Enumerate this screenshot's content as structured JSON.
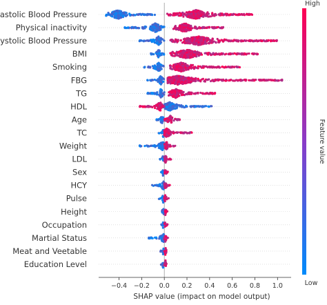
{
  "chart_data": {
    "type": "scatter",
    "subtype": "shap-beeswarm",
    "xlabel": "SHAP value (impact on model output)",
    "xlim": [
      -0.58,
      1.12
    ],
    "xticks": [
      -0.4,
      -0.2,
      0.0,
      0.2,
      0.4,
      0.6,
      0.8,
      1.0
    ],
    "xtick_labels": [
      "−0.4",
      "−0.2",
      "0.0",
      "0.2",
      "0.4",
      "0.6",
      "0.8",
      "1.0"
    ],
    "grid": false,
    "colorbar": {
      "label": "Feature value",
      "high_label": "High",
      "low_label": "Low",
      "high_color": "#ff0052",
      "low_color": "#008bfb"
    },
    "features": [
      {
        "name": "Diastolic Blood Pressure",
        "low_range": [
          -0.52,
          -0.08
        ],
        "low_peak": -0.41,
        "high_range": [
          0.02,
          0.78
        ],
        "high_peak": 0.28
      },
      {
        "name": "Physical inactivity",
        "low_range": [
          -0.35,
          0.0
        ],
        "low_peak": -0.08,
        "high_range": [
          0.08,
          0.52
        ],
        "high_peak": 0.18
      },
      {
        "name": "Systolic Blood Pressure",
        "low_range": [
          -0.22,
          0.0
        ],
        "low_peak": -0.05,
        "high_range": [
          0.05,
          1.0
        ],
        "high_peak": 0.3
      },
      {
        "name": "BMI",
        "low_range": [
          -0.12,
          0.0
        ],
        "low_peak": -0.05,
        "high_range": [
          0.05,
          0.83
        ],
        "high_peak": 0.2
      },
      {
        "name": "Smoking",
        "low_range": [
          -0.18,
          0.0
        ],
        "low_peak": -0.05,
        "high_range": [
          0.05,
          0.68
        ],
        "high_peak": 0.15
      },
      {
        "name": "FBG",
        "low_range": [
          -0.15,
          0.0
        ],
        "low_peak": -0.03,
        "high_range": [
          0.03,
          1.05
        ],
        "high_peak": 0.12
      },
      {
        "name": "TG",
        "low_range": [
          -0.15,
          0.0
        ],
        "low_peak": -0.03,
        "high_range": [
          0.03,
          0.45
        ],
        "high_peak": 0.1
      },
      {
        "name": "HDL",
        "low_range": [
          -0.01,
          0.42
        ],
        "low_peak": 0.05,
        "high_range": [
          -0.22,
          0.0
        ],
        "high_peak": -0.04
      },
      {
        "name": "Age",
        "low_range": [
          -0.08,
          0.0
        ],
        "low_peak": -0.02,
        "high_range": [
          0.0,
          0.14
        ],
        "high_peak": 0.05
      },
      {
        "name": "TC",
        "low_range": [
          -0.05,
          0.0
        ],
        "low_peak": -0.01,
        "high_range": [
          0.0,
          0.26
        ],
        "high_peak": 0.02
      },
      {
        "name": "Weight",
        "low_range": [
          -0.22,
          0.0
        ],
        "low_peak": -0.02,
        "high_range": [
          0.0,
          0.1
        ],
        "high_peak": 0.02
      },
      {
        "name": "LDL",
        "low_range": [
          -0.04,
          0.0
        ],
        "low_peak": -0.01,
        "high_range": [
          0.0,
          0.06
        ],
        "high_peak": 0.01
      },
      {
        "name": "Sex",
        "low_range": [
          -0.03,
          0.0
        ],
        "low_peak": -0.01,
        "high_range": [
          0.0,
          0.04
        ],
        "high_peak": 0.01
      },
      {
        "name": "HCY",
        "low_range": [
          -0.12,
          0.0
        ],
        "low_peak": -0.01,
        "high_range": [
          0.0,
          0.05
        ],
        "high_peak": 0.01
      },
      {
        "name": "Pulse",
        "low_range": [
          -0.05,
          0.0
        ],
        "low_peak": -0.01,
        "high_range": [
          0.0,
          0.04
        ],
        "high_peak": 0.01
      },
      {
        "name": "Height",
        "low_range": [
          -0.04,
          0.0
        ],
        "low_peak": -0.01,
        "high_range": [
          0.0,
          0.03
        ],
        "high_peak": 0.01
      },
      {
        "name": "Occupation",
        "low_range": [
          -0.03,
          0.0
        ],
        "low_peak": -0.01,
        "high_range": [
          0.0,
          0.03
        ],
        "high_peak": 0.01
      },
      {
        "name": "Martial Status",
        "low_range": [
          -0.14,
          0.0
        ],
        "low_peak": -0.01,
        "high_range": [
          0.0,
          0.04
        ],
        "high_peak": 0.01
      },
      {
        "name": "Meat and Veetable",
        "low_range": [
          -0.04,
          0.0
        ],
        "low_peak": -0.01,
        "high_range": [
          0.0,
          0.03
        ],
        "high_peak": 0.01
      },
      {
        "name": "Education Level",
        "low_range": [
          -0.03,
          0.0
        ],
        "low_peak": -0.01,
        "high_range": [
          0.0,
          0.02
        ],
        "high_peak": 0.01
      }
    ]
  }
}
